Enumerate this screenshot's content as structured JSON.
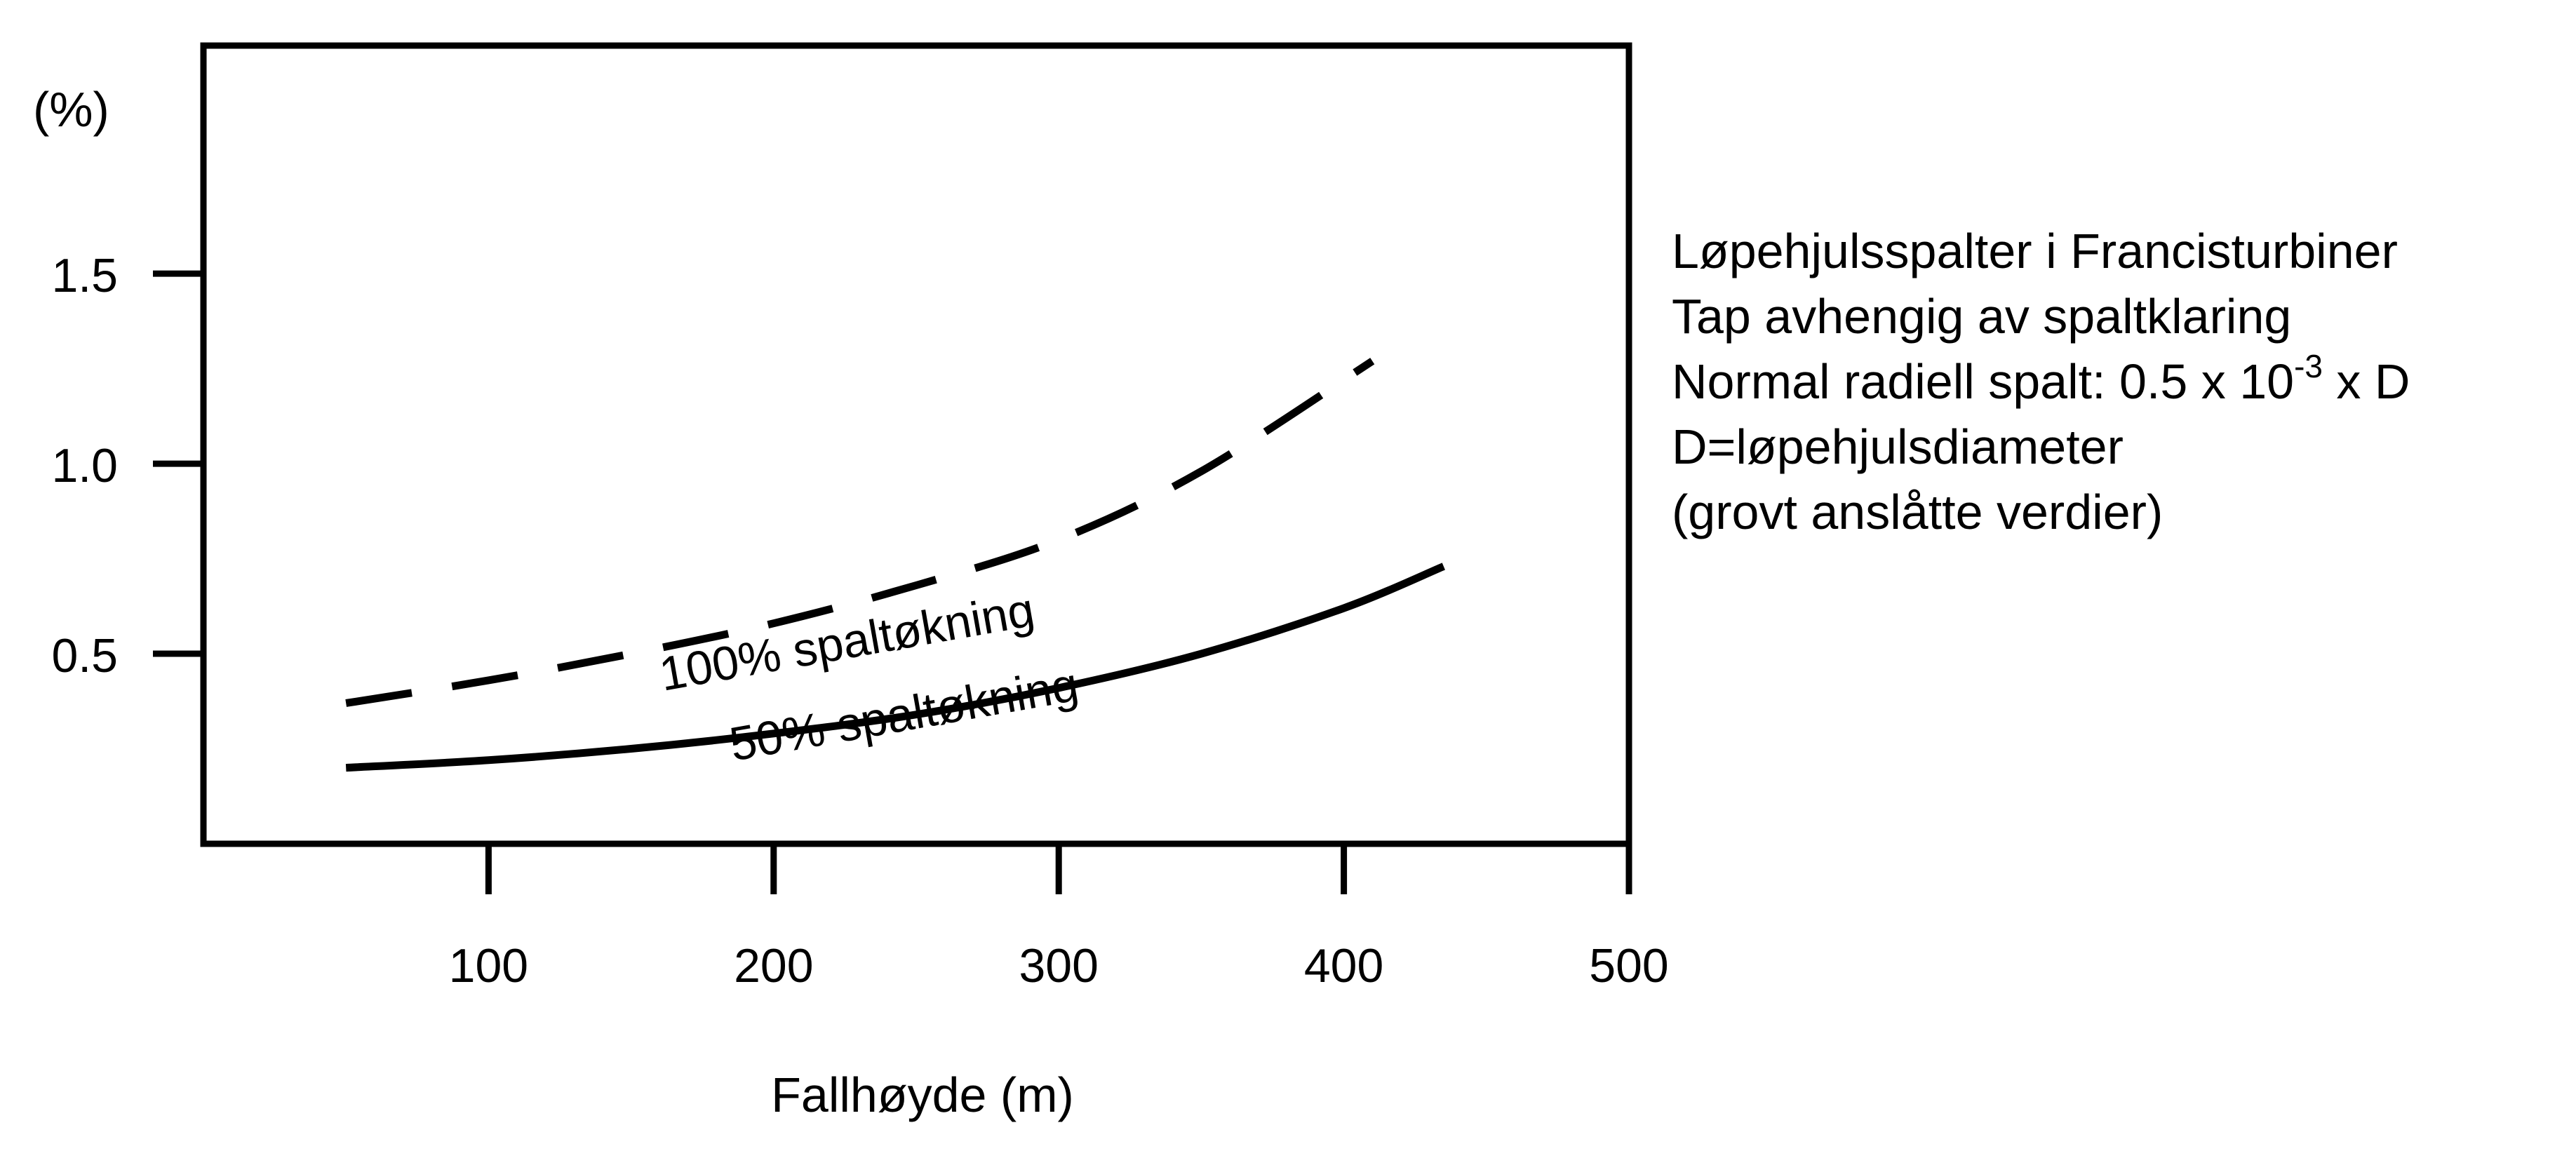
{
  "chart_data": {
    "type": "line",
    "title": "",
    "xlabel": "Fallhøyde (m)",
    "ylabel": "(%)",
    "xlim": [
      0,
      500
    ],
    "ylim": [
      0,
      2.1
    ],
    "xticks": [
      100,
      200,
      300,
      400,
      500
    ],
    "xtick_labels": [
      "100",
      "200",
      "300",
      "400",
      "500"
    ],
    "yticks": [
      0.5,
      1.0,
      1.5
    ],
    "ytick_labels": [
      "0.5",
      "1.0",
      "1.5"
    ],
    "grid": false,
    "series": [
      {
        "name": "100% spaltøkning",
        "style": "dashed",
        "x": [
          50,
          100,
          150,
          200,
          250,
          300,
          350,
          410
        ],
        "y": [
          0.37,
          0.43,
          0.5,
          0.58,
          0.68,
          0.8,
          0.98,
          1.27
        ]
      },
      {
        "name": "50% spaltøkning",
        "style": "solid",
        "x": [
          50,
          100,
          150,
          200,
          250,
          300,
          350,
          400,
          435
        ],
        "y": [
          0.2,
          0.22,
          0.25,
          0.29,
          0.34,
          0.41,
          0.5,
          0.62,
          0.73
        ]
      }
    ]
  },
  "info": {
    "line1": "Løpehjulsspalter i Francisturbiner",
    "line2": "Tap avhengig av spaltklaring",
    "line3_prefix": "Normal radiell spalt: 0.5 x 10",
    "line3_exp": "-3",
    "line3_suffix": " x D",
    "line4": "D=løpehjulsdiameter",
    "line5": "(grovt anslåtte verdier)"
  }
}
